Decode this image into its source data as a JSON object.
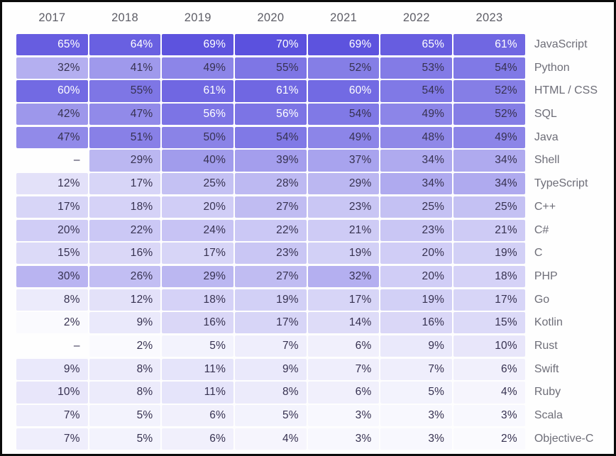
{
  "chart_data": {
    "type": "heatmap",
    "title": "",
    "unit": "%",
    "missing_display": "–",
    "columns": [
      "2017",
      "2018",
      "2019",
      "2020",
      "2021",
      "2022",
      "2023"
    ],
    "rows": [
      {
        "label": "JavaScript",
        "values": [
          65,
          64,
          69,
          70,
          69,
          65,
          61
        ]
      },
      {
        "label": "Python",
        "values": [
          32,
          41,
          49,
          55,
          52,
          53,
          54
        ]
      },
      {
        "label": "HTML / CSS",
        "values": [
          60,
          55,
          61,
          61,
          60,
          54,
          52
        ]
      },
      {
        "label": "SQL",
        "values": [
          42,
          47,
          56,
          56,
          54,
          49,
          52
        ]
      },
      {
        "label": "Java",
        "values": [
          47,
          51,
          50,
          54,
          49,
          48,
          49
        ]
      },
      {
        "label": "Shell",
        "values": [
          null,
          29,
          40,
          39,
          37,
          34,
          34
        ]
      },
      {
        "label": "TypeScript",
        "values": [
          12,
          17,
          25,
          28,
          29,
          34,
          34
        ]
      },
      {
        "label": "C++",
        "values": [
          17,
          18,
          20,
          27,
          23,
          25,
          25
        ]
      },
      {
        "label": "C#",
        "values": [
          20,
          22,
          24,
          22,
          21,
          23,
          21
        ]
      },
      {
        "label": "C",
        "values": [
          15,
          16,
          17,
          23,
          19,
          20,
          19
        ]
      },
      {
        "label": "PHP",
        "values": [
          30,
          26,
          29,
          27,
          32,
          20,
          18
        ]
      },
      {
        "label": "Go",
        "values": [
          8,
          12,
          18,
          19,
          17,
          19,
          17
        ]
      },
      {
        "label": "Kotlin",
        "values": [
          2,
          9,
          16,
          17,
          14,
          16,
          15
        ]
      },
      {
        "label": "Rust",
        "values": [
          null,
          2,
          5,
          7,
          6,
          9,
          10
        ]
      },
      {
        "label": "Swift",
        "values": [
          9,
          8,
          11,
          9,
          7,
          7,
          6
        ]
      },
      {
        "label": "Ruby",
        "values": [
          10,
          8,
          11,
          8,
          6,
          5,
          4
        ]
      },
      {
        "label": "Scala",
        "values": [
          7,
          5,
          6,
          5,
          3,
          3,
          3
        ]
      },
      {
        "label": "Objective-C",
        "values": [
          7,
          5,
          6,
          4,
          3,
          3,
          2
        ]
      }
    ],
    "layout": {
      "value_max": 70,
      "white_text_threshold": 56,
      "legend": "none",
      "grid": "off"
    },
    "colors": {
      "scale_low": "#FFFFFF",
      "scale_high": "#5B51DE",
      "cell_text_dark": "#363150",
      "cell_text_light": "#FFFFFF",
      "header_text": "#5D5D66",
      "label_text": "#6E6E78",
      "frame_border": "#0B0B0B"
    }
  }
}
